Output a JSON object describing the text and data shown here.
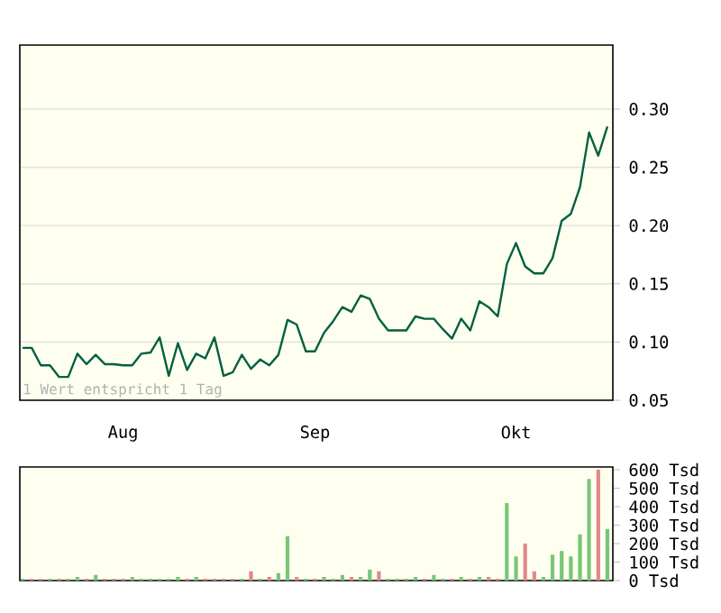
{
  "chart_data": [
    {
      "type": "line",
      "color": "#006040",
      "categories": [
        null,
        null,
        null,
        null,
        null,
        null,
        null,
        null,
        null,
        null,
        null,
        "Aug",
        null,
        null,
        null,
        null,
        null,
        null,
        null,
        null,
        null,
        null,
        null,
        null,
        null,
        null,
        null,
        null,
        null,
        null,
        null,
        null,
        "Sep",
        null,
        null,
        null,
        null,
        null,
        null,
        null,
        null,
        null,
        null,
        null,
        null,
        null,
        null,
        null,
        null,
        null,
        null,
        null,
        null,
        null,
        "Okt",
        null,
        null,
        null,
        null,
        null,
        null,
        null,
        null,
        null,
        null
      ],
      "values": [
        0.095,
        0.095,
        0.08,
        0.08,
        0.07,
        0.07,
        0.09,
        0.081,
        0.089,
        0.081,
        0.081,
        0.08,
        0.08,
        0.09,
        0.091,
        0.104,
        0.071,
        0.099,
        0.076,
        0.09,
        0.086,
        0.104,
        0.071,
        0.074,
        0.089,
        0.077,
        0.085,
        0.08,
        0.089,
        0.119,
        0.115,
        0.092,
        0.092,
        0.108,
        0.118,
        0.13,
        0.126,
        0.14,
        0.137,
        0.12,
        0.11,
        0.11,
        0.11,
        0.122,
        0.12,
        0.12,
        0.111,
        0.103,
        0.12,
        0.11,
        0.135,
        0.13,
        0.122,
        0.167,
        0.185,
        0.165,
        0.159,
        0.159,
        0.172,
        0.204,
        0.21,
        0.233,
        0.28,
        0.26,
        0.285
      ],
      "ylim": [
        0.05,
        0.355
      ],
      "yticks": [
        {
          "value": 0.05,
          "label": "0.05"
        },
        {
          "value": 0.1,
          "label": "0.10"
        },
        {
          "value": 0.15,
          "label": "0.15"
        },
        {
          "value": 0.2,
          "label": "0.20"
        },
        {
          "value": 0.25,
          "label": "0.25"
        },
        {
          "value": 0.3,
          "label": "0.30"
        }
      ],
      "grid": "y",
      "annotations": [
        "1 Wert entspricht 1 Tag"
      ]
    },
    {
      "type": "bar",
      "categories": [
        null,
        null,
        null,
        null,
        null,
        null,
        null,
        null,
        null,
        null,
        null,
        null,
        null,
        null,
        null,
        null,
        null,
        null,
        null,
        null,
        null,
        null,
        null,
        null,
        null,
        null,
        null,
        null,
        null,
        null,
        null,
        null,
        null,
        null,
        null,
        null,
        null,
        null,
        null,
        null,
        null,
        null,
        null,
        null,
        null,
        null,
        null,
        null,
        null,
        null,
        null,
        null,
        null,
        null,
        null,
        null,
        null,
        null,
        null,
        null,
        null,
        null,
        null,
        null,
        null
      ],
      "values": [
        10,
        10,
        10,
        10,
        10,
        10,
        20,
        10,
        30,
        10,
        10,
        10,
        20,
        10,
        10,
        10,
        10,
        20,
        10,
        20,
        10,
        10,
        10,
        10,
        10,
        50,
        10,
        20,
        40,
        240,
        20,
        10,
        10,
        20,
        10,
        30,
        20,
        20,
        60,
        50,
        10,
        10,
        10,
        20,
        10,
        30,
        10,
        10,
        20,
        10,
        20,
        20,
        10,
        420,
        130,
        200,
        50,
        20,
        140,
        160,
        130,
        250,
        550,
        600,
        280
      ],
      "colors": [
        "#77c677",
        "#e08a8a",
        "#e08a8a",
        "#77c677",
        "#e08a8a",
        "#77c677",
        "#77c677",
        "#e08a8a",
        "#77c677",
        "#e08a8a",
        "#e08a8a",
        "#e08a8a",
        "#77c677",
        "#77c677",
        "#77c677",
        "#77c677",
        "#77c677",
        "#77c677",
        "#e08a8a",
        "#77c677",
        "#e08a8a",
        "#e08a8a",
        "#e08a8a",
        "#e08a8a",
        "#77c677",
        "#e08a8a",
        "#77c677",
        "#e08a8a",
        "#77c677",
        "#77c677",
        "#e08a8a",
        "#77c677",
        "#e08a8a",
        "#77c677",
        "#77c677",
        "#77c677",
        "#e08a8a",
        "#77c677",
        "#77c677",
        "#e08a8a",
        "#77c677",
        "#77c677",
        "#77c677",
        "#77c677",
        "#e08a8a",
        "#77c677",
        "#77c677",
        "#e08a8a",
        "#77c677",
        "#e08a8a",
        "#77c677",
        "#e08a8a",
        "#e08a8a",
        "#77c677",
        "#77c677",
        "#e08a8a",
        "#e08a8a",
        "#77c677",
        "#77c677",
        "#77c677",
        "#77c677",
        "#77c677",
        "#77c677",
        "#e08a8a",
        "#77c677"
      ],
      "ylim": [
        0,
        615
      ],
      "yticks": [
        {
          "value": 0,
          "label": "0 Tsd"
        },
        {
          "value": 100,
          "label": "100 Tsd"
        },
        {
          "value": 200,
          "label": "200 Tsd"
        },
        {
          "value": 300,
          "label": "300 Tsd"
        },
        {
          "value": 400,
          "label": "400 Tsd"
        },
        {
          "value": 500,
          "label": "500 Tsd"
        },
        {
          "value": 600,
          "label": "600 Tsd"
        }
      ]
    }
  ]
}
